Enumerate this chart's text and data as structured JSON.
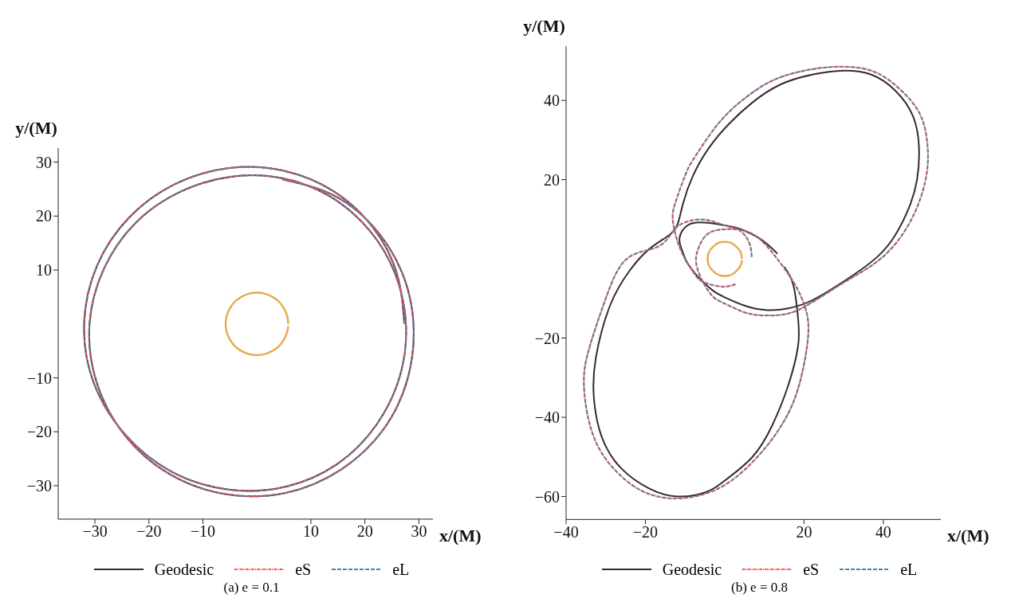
{
  "chart_data": [
    {
      "type": "line",
      "xlabel": "x/(M)",
      "ylabel": "y/(M)",
      "xlim": [
        -36.8,
        32.6
      ],
      "ylim": [
        -36.2,
        32.6
      ],
      "xticks": [
        -30,
        -20,
        -10,
        10,
        20,
        30
      ],
      "yticks": [
        -30,
        -20,
        -10,
        10,
        20,
        30
      ],
      "legend": "bottom",
      "annotations": [
        "(a) e = 0.1"
      ],
      "series": [
        {
          "name": "Geodesic",
          "color": "#342c2c",
          "line_style": "solid",
          "x": [
            27.3,
            25.9,
            21.4,
            14.2,
            5.0,
            -5.1,
            -15.0,
            -23.6,
            -29.6,
            -32.0,
            -30.2,
            -24.4,
            -15.8,
            -5.4,
            5.3,
            15.0,
            22.2,
            26.5,
            27.6,
            25.6,
            20.8,
            13.6,
            4.8,
            -4.8,
            -14.2,
            -22.4,
            -28.3,
            -31.0,
            -29.7,
            -24.5,
            -16.1,
            -5.6,
            5.5,
            15.6,
            23.4,
            27.9,
            29.0,
            26.8,
            21.5,
            13.9,
            4.7
          ],
          "values": [
            0,
            9.4,
            18.0,
            24.6,
            28.4,
            28.9,
            26.0,
            19.8,
            10.8,
            0,
            -11.0,
            -20.5,
            -27.4,
            -30.7,
            -30.2,
            -25.9,
            -18.6,
            -9.6,
            0,
            9.3,
            17.4,
            23.6,
            27.0,
            27.3,
            24.5,
            18.8,
            10.3,
            0,
            -10.8,
            -20.6,
            -27.9,
            -31.6,
            -31.3,
            -27.0,
            -19.6,
            -10.2,
            0,
            9.7,
            18.1,
            24.0,
            26.8
          ]
        },
        {
          "name": "eS",
          "color": "#ff4a4a",
          "line_style": "dashdot",
          "x": [
            27.3,
            25.9,
            21.4,
            14.2,
            5.0,
            -5.1,
            -15.0,
            -23.6,
            -29.6,
            -32.0,
            -30.2,
            -24.4,
            -15.8,
            -5.4,
            5.3,
            15.0,
            22.2,
            26.5,
            27.6,
            25.6,
            20.8,
            13.6,
            4.8,
            -4.8,
            -14.2,
            -22.4,
            -28.3,
            -31.0,
            -29.7,
            -24.5,
            -16.1,
            -5.6,
            5.5,
            15.6,
            23.4,
            27.9,
            29.0,
            26.8,
            21.5,
            13.9,
            4.7
          ],
          "values": [
            0,
            9.4,
            18.0,
            24.6,
            28.4,
            28.9,
            26.0,
            19.8,
            10.8,
            0,
            -11.0,
            -20.5,
            -27.4,
            -30.7,
            -30.2,
            -25.9,
            -18.6,
            -9.6,
            0,
            9.3,
            17.4,
            23.6,
            27.0,
            27.3,
            24.5,
            18.8,
            10.3,
            0,
            -10.8,
            -20.6,
            -27.9,
            -31.6,
            -31.3,
            -27.0,
            -19.6,
            -10.2,
            0,
            9.7,
            18.1,
            24.0,
            26.8
          ]
        },
        {
          "name": "eL",
          "color": "#3a86b8",
          "line_style": "dashed",
          "x": [
            27.3,
            25.9,
            21.4,
            14.2,
            5.0,
            -5.1,
            -15.0,
            -23.6,
            -29.6,
            -32.0,
            -30.2,
            -24.4,
            -15.8,
            -5.4,
            5.3,
            15.0,
            22.2,
            26.5,
            27.6,
            25.6,
            20.8,
            13.6,
            4.8,
            -4.8,
            -14.2,
            -22.4,
            -28.3,
            -31.0,
            -29.7,
            -24.5,
            -16.1,
            -5.6,
            5.5,
            15.6,
            23.4,
            27.9,
            29.0,
            26.8,
            21.5,
            13.9,
            4.7
          ],
          "values": [
            0,
            9.4,
            18.0,
            24.6,
            28.4,
            28.9,
            26.0,
            19.8,
            10.8,
            0,
            -11.0,
            -20.5,
            -27.4,
            -30.7,
            -30.2,
            -25.9,
            -18.6,
            -9.6,
            0,
            9.3,
            17.4,
            23.6,
            27.0,
            27.3,
            24.5,
            18.8,
            10.3,
            0,
            -10.8,
            -20.6,
            -27.9,
            -31.6,
            -31.3,
            -27.0,
            -19.6,
            -10.2,
            0,
            9.7,
            18.1,
            24.0,
            26.8
          ]
        },
        {
          "color": "#e8a94a",
          "line_style": "solid",
          "x": [
            5.8,
            5.6,
            5.0,
            4.1,
            2.9,
            1.5,
            0,
            -1.5,
            -2.9,
            -4.1,
            -5.0,
            -5.6,
            -5.8,
            -5.6,
            -5.0,
            -4.1,
            -2.9,
            -1.5,
            0,
            1.5,
            2.9,
            4.1,
            5.0,
            5.6,
            5.8
          ],
          "values": [
            0,
            1.5,
            2.9,
            4.1,
            5.0,
            5.6,
            5.8,
            5.6,
            5.0,
            4.1,
            2.9,
            1.5,
            0,
            -1.5,
            -2.9,
            -4.1,
            -5.0,
            -5.6,
            -5.8,
            -5.6,
            -5.0,
            -4.1,
            -2.9,
            -1.5,
            -0.4
          ]
        }
      ]
    },
    {
      "type": "line",
      "xlabel": "x/(M)",
      "ylabel": "y/(M)",
      "xlim": [
        -40,
        54.5
      ],
      "ylim": [
        -65.8,
        53.7
      ],
      "xticks": [
        -40,
        -20,
        20,
        40
      ],
      "yticks": [
        -60,
        -40,
        -20,
        20,
        40
      ],
      "legend": "bottom",
      "annotations": [
        "(b) e = 0.8"
      ],
      "series": [
        {
          "name": "Geodesic",
          "color": "#342c2c",
          "line_style": "solid",
          "x": [
            13.3,
            9,
            4,
            0.8,
            -4.3,
            -9,
            -11.4,
            -10.5,
            -9.4,
            -6.3,
            -3,
            0,
            5,
            10.2,
            16,
            22,
            28,
            34,
            39,
            43,
            46.5,
            48.5,
            49,
            47.5,
            43,
            37,
            30,
            22,
            14,
            7,
            1,
            -4,
            -8,
            -10.5,
            -11.8,
            -14,
            -19,
            -24,
            -29,
            -32.5,
            -33,
            -31,
            -26,
            -19,
            -12,
            -5,
            0,
            7,
            12,
            16,
            18.5,
            18.5,
            17.3,
            15
          ],
          "values": [
            1.3,
            5,
            7.5,
            8.3,
            9.1,
            8.7,
            5.2,
            1.5,
            -1.1,
            -5,
            -8,
            -9.7,
            -11.8,
            -12.9,
            -12.5,
            -10.5,
            -7,
            -3,
            1,
            6,
            13,
            20,
            28,
            36,
            42.5,
            46.5,
            47.5,
            46.5,
            44,
            39.5,
            34,
            28,
            21,
            14,
            9,
            6,
            2.5,
            -3,
            -12,
            -25,
            -35,
            -45,
            -53,
            -58,
            -60,
            -59,
            -56,
            -50,
            -42,
            -32,
            -22,
            -15,
            -6.6,
            -2
          ]
        },
        {
          "name": "eS",
          "color": "#ff4a4a",
          "line_style": "dashdot",
          "x": [
            6.8,
            6.2,
            3.9,
            0.5,
            -5.1,
            -10,
            -13,
            -17,
            -24.7,
            -30,
            -34,
            -35.5,
            -33,
            -27,
            -20,
            -12,
            -4,
            3,
            10,
            15.5,
            19,
            21,
            20.5,
            18,
            14,
            8.6,
            4,
            0.4,
            -4,
            -6.5,
            -7.2,
            -5.5,
            -3,
            0,
            5,
            10,
            16,
            22,
            30,
            38,
            44,
            48.5,
            51,
            51,
            49,
            44,
            37,
            28,
            20,
            12,
            5,
            0,
            -4,
            -8,
            -10,
            -12.5,
            -13,
            -11,
            -7.8,
            -5.5,
            -0.8,
            2.7
          ],
          "values": [
            0.5,
            4,
            7.1,
            8.3,
            9.9,
            9.2,
            7,
            3,
            0,
            -10,
            -22,
            -32,
            -45,
            -54,
            -59,
            -60.5,
            -59,
            -55,
            -48,
            -40,
            -31,
            -20,
            -13,
            -7,
            -1,
            5.2,
            7.3,
            7.5,
            6.5,
            3,
            -1,
            -5.8,
            -9.5,
            -11.3,
            -13.5,
            -14.3,
            -13.8,
            -11,
            -6,
            -1,
            5,
            13,
            22,
            30,
            37,
            43,
            47.5,
            48.5,
            47.5,
            45,
            40.5,
            36,
            31,
            25,
            21,
            14,
            9,
            2,
            -3.5,
            -5.8,
            -7,
            -6.4
          ]
        },
        {
          "name": "eL",
          "color": "#3a86b8",
          "line_style": "dashed",
          "x": [
            6.8,
            6.2,
            3.9,
            0.5,
            -5.1,
            -10,
            -13,
            -17,
            -24.7,
            -30,
            -34,
            -35.5,
            -33,
            -27,
            -20,
            -12,
            -4,
            3,
            10,
            15.5,
            19,
            21,
            20.5,
            18,
            14,
            8.6,
            4,
            0.4,
            -4,
            -6.5,
            -7.2,
            -5.5,
            -3,
            0,
            5,
            10,
            16,
            22,
            30,
            38,
            44,
            48.5,
            51,
            51,
            49,
            44,
            37,
            28,
            20,
            12,
            5,
            0,
            -4,
            -8,
            -10,
            -12.5,
            -13,
            -11,
            -7.8,
            -5.5,
            -0.8,
            2.7
          ],
          "values": [
            0.5,
            4,
            7.1,
            8.3,
            9.9,
            9.2,
            7,
            3,
            0,
            -10,
            -22,
            -32,
            -45,
            -54,
            -59,
            -60.5,
            -59,
            -55,
            -48,
            -40,
            -31,
            -20,
            -13,
            -7,
            -1,
            5.2,
            7.3,
            7.5,
            6.5,
            3,
            -1,
            -5.8,
            -9.5,
            -11.3,
            -13.5,
            -14.3,
            -13.8,
            -11,
            -6,
            -1,
            5,
            13,
            22,
            30,
            37,
            43,
            47.5,
            48.5,
            47.5,
            45,
            40.5,
            36,
            31,
            25,
            21,
            14,
            9,
            2,
            -3.5,
            -5.8,
            -7,
            -6.4
          ]
        },
        {
          "color": "#e8a94a",
          "line_style": "solid",
          "x": [
            4.3,
            4.2,
            3.7,
            3.0,
            2.2,
            1.1,
            0,
            -1.1,
            -2.2,
            -3.0,
            -3.7,
            -4.2,
            -4.3,
            -4.2,
            -3.7,
            -3.0,
            -2.2,
            -1.1,
            0,
            1.1,
            2.2,
            3.0,
            3.7,
            4.2,
            4.3
          ],
          "values": [
            0,
            1.1,
            2.2,
            3.0,
            3.7,
            4.2,
            4.3,
            4.2,
            3.7,
            3.0,
            2.2,
            1.1,
            0,
            -1.1,
            -2.2,
            -3.0,
            -3.7,
            -4.2,
            -4.3,
            -4.2,
            -3.7,
            -3.0,
            -2.2,
            -1.1,
            -0.3
          ]
        }
      ]
    }
  ]
}
